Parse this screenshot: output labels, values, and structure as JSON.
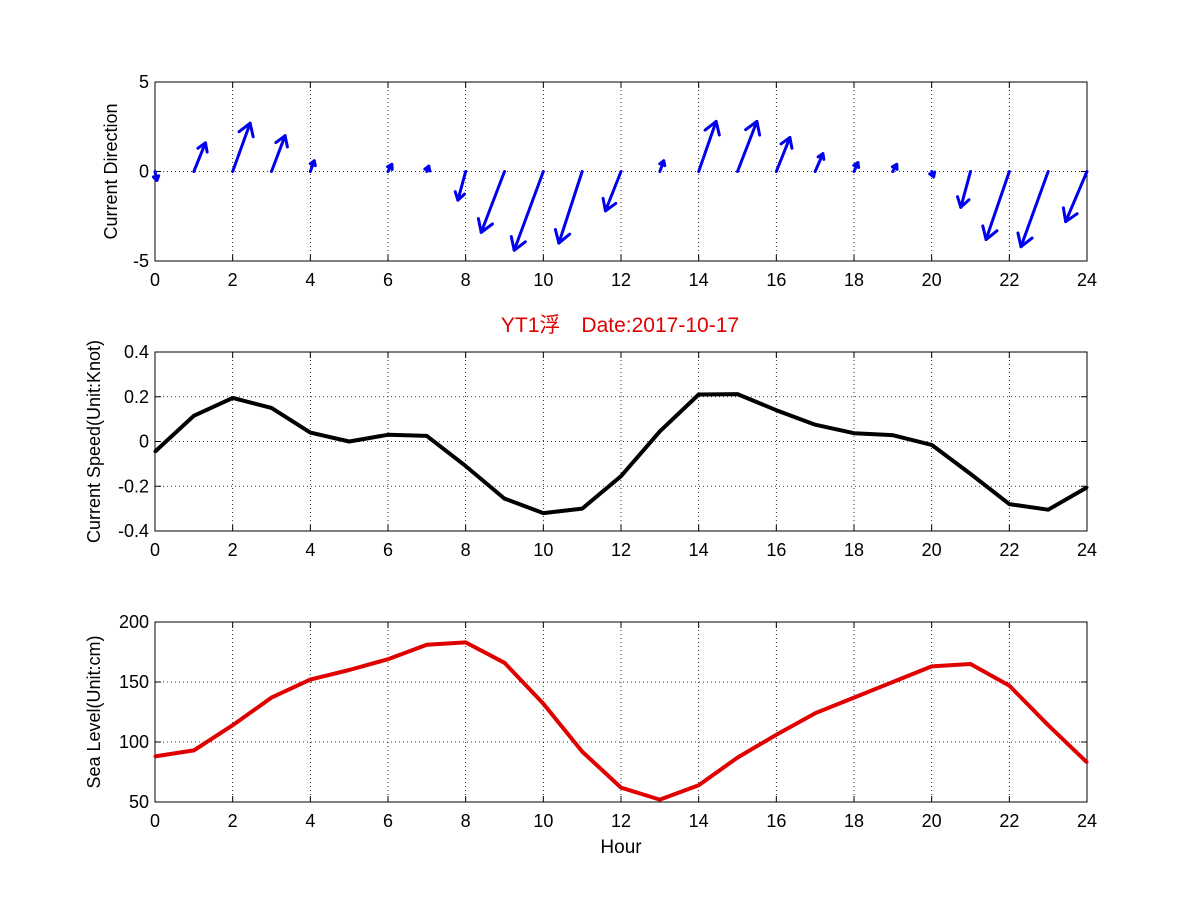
{
  "figure": {
    "title": "YT1浮　Date:2017-10-17",
    "title_color": "#e00000"
  },
  "chart_data": [
    {
      "type": "quiver",
      "ylabel": "Current Direction",
      "xlabel": "",
      "xlim": [
        0,
        24
      ],
      "ylim": [
        -5,
        5
      ],
      "xticks": [
        0,
        2,
        4,
        6,
        8,
        10,
        12,
        14,
        16,
        18,
        20,
        22,
        24
      ],
      "yticks": [
        -5,
        0,
        5
      ],
      "grid": true,
      "color": "#0000ee",
      "x": [
        0,
        1,
        2,
        3,
        4,
        5,
        6,
        7,
        8,
        9,
        10,
        11,
        12,
        13,
        14,
        15,
        16,
        17,
        18,
        19,
        20,
        21,
        22,
        23,
        24
      ],
      "y": [
        0,
        0,
        0,
        0,
        0,
        0,
        0,
        0,
        0,
        0,
        0,
        0,
        0,
        0,
        0,
        0,
        0,
        0,
        0,
        0,
        0,
        0,
        0,
        0,
        0
      ],
      "u": [
        0.05,
        0.3,
        0.45,
        0.35,
        0.1,
        0.0,
        0.1,
        0.05,
        -0.2,
        -0.6,
        -0.75,
        -0.6,
        -0.4,
        0.1,
        0.45,
        0.5,
        0.35,
        0.2,
        0.1,
        0.1,
        0.05,
        -0.25,
        -0.6,
        -0.7,
        -0.55
      ],
      "v": [
        -0.5,
        1.6,
        2.7,
        2.0,
        0.6,
        0.0,
        0.4,
        0.3,
        -1.6,
        -3.4,
        -4.4,
        -4.0,
        -2.2,
        0.6,
        2.8,
        2.8,
        1.9,
        1.0,
        0.5,
        0.4,
        -0.3,
        -2.0,
        -3.8,
        -4.2,
        -2.8
      ]
    },
    {
      "type": "line",
      "ylabel": "Current Speed(Unit:Knot)",
      "xlabel": "",
      "xlim": [
        0,
        24
      ],
      "ylim": [
        -0.4,
        0.4
      ],
      "xticks": [
        0,
        2,
        4,
        6,
        8,
        10,
        12,
        14,
        16,
        18,
        20,
        22,
        24
      ],
      "yticks": [
        -0.4,
        -0.2,
        0,
        0.2,
        0.4
      ],
      "grid": true,
      "color": "#000000",
      "x": [
        0,
        1,
        2,
        3,
        4,
        5,
        6,
        7,
        8,
        9,
        10,
        11,
        12,
        13,
        14,
        15,
        16,
        17,
        18,
        19,
        20,
        21,
        22,
        23,
        24
      ],
      "y": [
        -0.045,
        0.115,
        0.195,
        0.15,
        0.04,
        0.0,
        0.03,
        0.025,
        -0.11,
        -0.255,
        -0.32,
        -0.3,
        -0.155,
        0.045,
        0.21,
        0.212,
        0.14,
        0.075,
        0.037,
        0.028,
        -0.015,
        -0.145,
        -0.28,
        -0.305,
        -0.205
      ]
    },
    {
      "type": "line",
      "ylabel": "Sea Level(Unit:cm)",
      "xlabel": "Hour",
      "xlim": [
        0,
        24
      ],
      "ylim": [
        50,
        200
      ],
      "xticks": [
        0,
        2,
        4,
        6,
        8,
        10,
        12,
        14,
        16,
        18,
        20,
        22,
        24
      ],
      "yticks": [
        50,
        100,
        150,
        200
      ],
      "grid": true,
      "color": "#e00000",
      "x": [
        0,
        1,
        2,
        3,
        4,
        5,
        6,
        7,
        8,
        9,
        10,
        11,
        12,
        13,
        14,
        15,
        16,
        17,
        18,
        19,
        20,
        21,
        22,
        23,
        24
      ],
      "y": [
        88,
        93,
        114,
        137,
        152,
        160,
        169,
        181,
        183,
        166,
        132,
        92,
        62,
        52,
        64,
        87,
        106,
        124,
        137,
        150,
        163,
        165,
        147,
        114,
        83
      ]
    }
  ]
}
